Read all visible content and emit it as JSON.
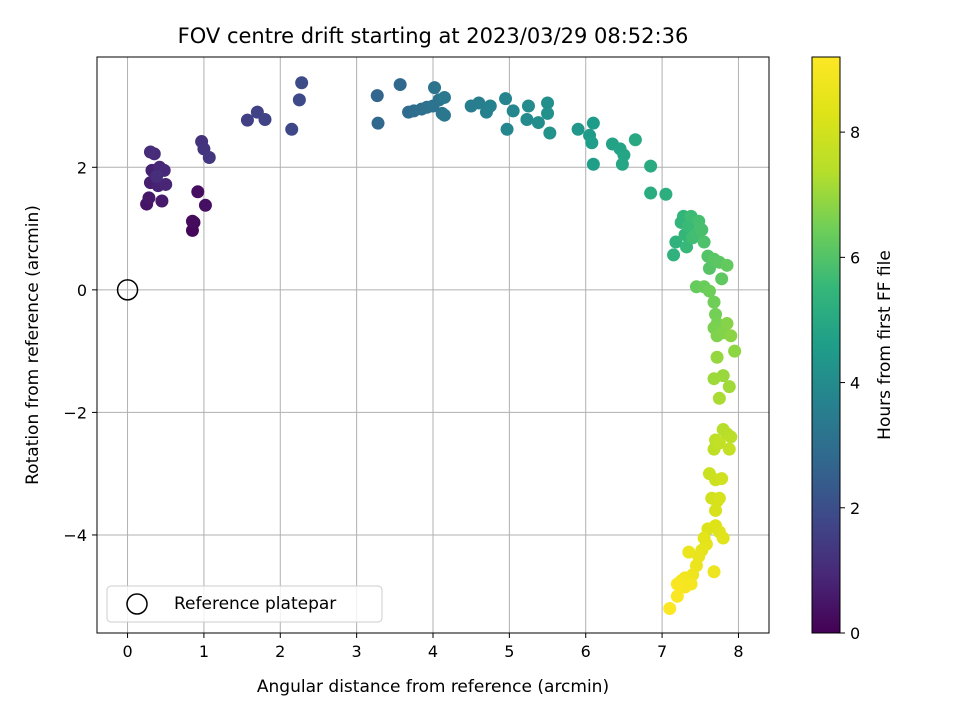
{
  "chart_data": {
    "type": "scatter",
    "title": "FOV centre drift starting at 2023/03/29 08:52:36",
    "xlabel": "Angular distance from reference (arcmin)",
    "ylabel": "Rotation from reference (arcmin)",
    "xlim": [
      -0.4,
      8.4
    ],
    "ylim": [
      -5.6,
      3.8
    ],
    "xticks": [
      0,
      1,
      2,
      3,
      4,
      5,
      6,
      7,
      8
    ],
    "yticks": [
      -4,
      -2,
      0,
      2
    ],
    "grid": true,
    "legend": {
      "location": "lower left",
      "entries": [
        "Reference platepar"
      ]
    },
    "reference_point": {
      "x": 0,
      "y": 0,
      "label": "Reference platepar",
      "marker": "hollow circle",
      "color": "#000000"
    },
    "colorbar": {
      "label": "Hours from first FF file",
      "colormap": "viridis",
      "range": [
        0,
        9.2
      ],
      "ticks": [
        0,
        2,
        4,
        6,
        8
      ]
    },
    "points": [
      {
        "x": 0.25,
        "y": 1.4,
        "c": 0.45
      },
      {
        "x": 0.28,
        "y": 1.5,
        "c": 0.55
      },
      {
        "x": 0.45,
        "y": 1.45,
        "c": 0.6
      },
      {
        "x": 0.3,
        "y": 1.75,
        "c": 0.7
      },
      {
        "x": 0.32,
        "y": 1.95,
        "c": 0.75
      },
      {
        "x": 0.4,
        "y": 1.7,
        "c": 0.8
      },
      {
        "x": 0.5,
        "y": 1.72,
        "c": 0.85
      },
      {
        "x": 0.42,
        "y": 2.0,
        "c": 0.9
      },
      {
        "x": 0.48,
        "y": 1.95,
        "c": 0.95
      },
      {
        "x": 0.35,
        "y": 2.22,
        "c": 1.0
      },
      {
        "x": 0.3,
        "y": 2.25,
        "c": 1.05
      },
      {
        "x": 0.38,
        "y": 1.85,
        "c": 1.1
      },
      {
        "x": 0.85,
        "y": 0.97,
        "c": 0.15
      },
      {
        "x": 0.87,
        "y": 1.1,
        "c": 0.2
      },
      {
        "x": 0.85,
        "y": 1.12,
        "c": 0.25
      },
      {
        "x": 0.92,
        "y": 1.6,
        "c": 0.3
      },
      {
        "x": 1.02,
        "y": 1.38,
        "c": 0.35
      },
      {
        "x": 0.97,
        "y": 2.42,
        "c": 1.2
      },
      {
        "x": 1.0,
        "y": 2.3,
        "c": 1.25
      },
      {
        "x": 1.07,
        "y": 2.16,
        "c": 1.3
      },
      {
        "x": 1.57,
        "y": 2.77,
        "c": 1.6
      },
      {
        "x": 1.7,
        "y": 2.9,
        "c": 1.65
      },
      {
        "x": 1.8,
        "y": 2.78,
        "c": 1.7
      },
      {
        "x": 2.15,
        "y": 2.62,
        "c": 1.8
      },
      {
        "x": 2.25,
        "y": 3.1,
        "c": 1.85
      },
      {
        "x": 2.28,
        "y": 3.38,
        "c": 1.9
      },
      {
        "x": 3.27,
        "y": 3.17,
        "c": 2.7
      },
      {
        "x": 3.28,
        "y": 2.72,
        "c": 2.75
      },
      {
        "x": 3.57,
        "y": 3.35,
        "c": 2.8
      },
      {
        "x": 3.68,
        "y": 2.9,
        "c": 2.9
      },
      {
        "x": 3.75,
        "y": 2.92,
        "c": 2.95
      },
      {
        "x": 3.85,
        "y": 2.95,
        "c": 3.0
      },
      {
        "x": 3.92,
        "y": 2.98,
        "c": 3.05
      },
      {
        "x": 4.0,
        "y": 3.0,
        "c": 3.1
      },
      {
        "x": 4.02,
        "y": 3.3,
        "c": 3.15
      },
      {
        "x": 4.08,
        "y": 3.1,
        "c": 3.2
      },
      {
        "x": 4.12,
        "y": 2.88,
        "c": 3.25
      },
      {
        "x": 4.15,
        "y": 2.85,
        "c": 3.3
      },
      {
        "x": 4.15,
        "y": 3.14,
        "c": 3.35
      },
      {
        "x": 4.5,
        "y": 3.0,
        "c": 3.5
      },
      {
        "x": 4.6,
        "y": 3.05,
        "c": 3.55
      },
      {
        "x": 4.7,
        "y": 2.9,
        "c": 3.6
      },
      {
        "x": 4.75,
        "y": 3.0,
        "c": 3.65
      },
      {
        "x": 4.95,
        "y": 3.12,
        "c": 3.75
      },
      {
        "x": 4.97,
        "y": 2.62,
        "c": 3.8
      },
      {
        "x": 5.05,
        "y": 2.92,
        "c": 3.85
      },
      {
        "x": 5.23,
        "y": 2.78,
        "c": 3.95
      },
      {
        "x": 5.25,
        "y": 3.0,
        "c": 4.0
      },
      {
        "x": 5.38,
        "y": 2.73,
        "c": 4.05
      },
      {
        "x": 5.5,
        "y": 3.05,
        "c": 4.1
      },
      {
        "x": 5.5,
        "y": 2.88,
        "c": 4.15
      },
      {
        "x": 5.53,
        "y": 2.56,
        "c": 4.2
      },
      {
        "x": 5.9,
        "y": 2.62,
        "c": 4.4
      },
      {
        "x": 6.05,
        "y": 2.52,
        "c": 4.5
      },
      {
        "x": 6.1,
        "y": 2.72,
        "c": 4.55
      },
      {
        "x": 6.08,
        "y": 2.4,
        "c": 4.6
      },
      {
        "x": 6.1,
        "y": 2.05,
        "c": 4.65
      },
      {
        "x": 6.35,
        "y": 2.38,
        "c": 4.75
      },
      {
        "x": 6.45,
        "y": 2.3,
        "c": 4.8
      },
      {
        "x": 6.5,
        "y": 2.2,
        "c": 4.85
      },
      {
        "x": 6.48,
        "y": 2.05,
        "c": 4.9
      },
      {
        "x": 6.65,
        "y": 2.45,
        "c": 4.95
      },
      {
        "x": 6.85,
        "y": 2.02,
        "c": 5.05
      },
      {
        "x": 6.85,
        "y": 1.58,
        "c": 5.1
      },
      {
        "x": 7.05,
        "y": 1.56,
        "c": 5.2
      },
      {
        "x": 7.15,
        "y": 0.57,
        "c": 5.3
      },
      {
        "x": 7.18,
        "y": 0.78,
        "c": 5.35
      },
      {
        "x": 7.25,
        "y": 1.1,
        "c": 5.4
      },
      {
        "x": 7.28,
        "y": 1.2,
        "c": 5.45
      },
      {
        "x": 7.3,
        "y": 0.9,
        "c": 5.5
      },
      {
        "x": 7.32,
        "y": 0.7,
        "c": 5.55
      },
      {
        "x": 7.35,
        "y": 1.05,
        "c": 5.6
      },
      {
        "x": 7.38,
        "y": 1.2,
        "c": 5.65
      },
      {
        "x": 7.4,
        "y": 0.85,
        "c": 5.7
      },
      {
        "x": 7.45,
        "y": 0.92,
        "c": 5.75
      },
      {
        "x": 7.48,
        "y": 1.12,
        "c": 5.8
      },
      {
        "x": 7.52,
        "y": 0.98,
        "c": 5.85
      },
      {
        "x": 7.55,
        "y": 0.78,
        "c": 5.9
      },
      {
        "x": 7.6,
        "y": 0.55,
        "c": 6.0
      },
      {
        "x": 7.62,
        "y": 0.35,
        "c": 6.05
      },
      {
        "x": 7.68,
        "y": 0.5,
        "c": 6.1
      },
      {
        "x": 7.75,
        "y": 0.45,
        "c": 6.15
      },
      {
        "x": 7.78,
        "y": 0.18,
        "c": 6.2
      },
      {
        "x": 7.85,
        "y": 0.4,
        "c": 6.25
      },
      {
        "x": 7.45,
        "y": 0.05,
        "c": 6.3
      },
      {
        "x": 7.55,
        "y": 0.05,
        "c": 6.35
      },
      {
        "x": 7.62,
        "y": -0.02,
        "c": 6.4
      },
      {
        "x": 7.68,
        "y": -0.2,
        "c": 6.45
      },
      {
        "x": 7.7,
        "y": -0.4,
        "c": 6.5
      },
      {
        "x": 7.72,
        "y": -0.55,
        "c": 6.55
      },
      {
        "x": 7.68,
        "y": -0.62,
        "c": 6.6
      },
      {
        "x": 7.72,
        "y": -0.75,
        "c": 6.65
      },
      {
        "x": 7.8,
        "y": -0.7,
        "c": 6.7
      },
      {
        "x": 7.85,
        "y": -0.55,
        "c": 6.75
      },
      {
        "x": 7.9,
        "y": -0.75,
        "c": 6.8
      },
      {
        "x": 7.95,
        "y": -1.0,
        "c": 6.85
      },
      {
        "x": 7.72,
        "y": -1.1,
        "c": 6.95
      },
      {
        "x": 7.8,
        "y": -1.4,
        "c": 7.0
      },
      {
        "x": 7.68,
        "y": -1.45,
        "c": 7.05
      },
      {
        "x": 7.88,
        "y": -1.58,
        "c": 7.1
      },
      {
        "x": 7.75,
        "y": -1.77,
        "c": 7.2
      },
      {
        "x": 7.8,
        "y": -2.28,
        "c": 7.4
      },
      {
        "x": 7.85,
        "y": -2.35,
        "c": 7.45
      },
      {
        "x": 7.9,
        "y": -2.4,
        "c": 7.5
      },
      {
        "x": 7.7,
        "y": -2.45,
        "c": 7.55
      },
      {
        "x": 7.68,
        "y": -2.6,
        "c": 7.6
      },
      {
        "x": 7.75,
        "y": -2.5,
        "c": 7.65
      },
      {
        "x": 7.88,
        "y": -2.6,
        "c": 7.7
      },
      {
        "x": 7.62,
        "y": -3.0,
        "c": 7.85
      },
      {
        "x": 7.7,
        "y": -3.1,
        "c": 7.9
      },
      {
        "x": 7.78,
        "y": -3.08,
        "c": 7.95
      },
      {
        "x": 7.65,
        "y": -3.4,
        "c": 8.0
      },
      {
        "x": 7.72,
        "y": -3.45,
        "c": 8.05
      },
      {
        "x": 7.75,
        "y": -3.4,
        "c": 8.1
      },
      {
        "x": 7.7,
        "y": -3.6,
        "c": 8.15
      },
      {
        "x": 7.6,
        "y": -3.9,
        "c": 8.25
      },
      {
        "x": 7.7,
        "y": -3.85,
        "c": 8.3
      },
      {
        "x": 7.75,
        "y": -3.95,
        "c": 8.35
      },
      {
        "x": 7.8,
        "y": -4.05,
        "c": 8.4
      },
      {
        "x": 7.55,
        "y": -4.05,
        "c": 8.45
      },
      {
        "x": 7.58,
        "y": -4.15,
        "c": 8.5
      },
      {
        "x": 7.52,
        "y": -4.25,
        "c": 8.55
      },
      {
        "x": 7.48,
        "y": -4.35,
        "c": 8.6
      },
      {
        "x": 7.35,
        "y": -4.28,
        "c": 8.65
      },
      {
        "x": 7.45,
        "y": -4.5,
        "c": 8.7
      },
      {
        "x": 7.68,
        "y": -4.6,
        "c": 8.75
      },
      {
        "x": 7.4,
        "y": -4.65,
        "c": 8.8
      },
      {
        "x": 7.3,
        "y": -4.7,
        "c": 8.85
      },
      {
        "x": 7.25,
        "y": -4.75,
        "c": 8.9
      },
      {
        "x": 7.38,
        "y": -4.8,
        "c": 8.95
      },
      {
        "x": 7.3,
        "y": -4.85,
        "c": 9.0
      },
      {
        "x": 7.2,
        "y": -4.8,
        "c": 9.05
      },
      {
        "x": 7.2,
        "y": -5.0,
        "c": 9.1
      },
      {
        "x": 7.1,
        "y": -5.2,
        "c": 9.15
      }
    ]
  }
}
